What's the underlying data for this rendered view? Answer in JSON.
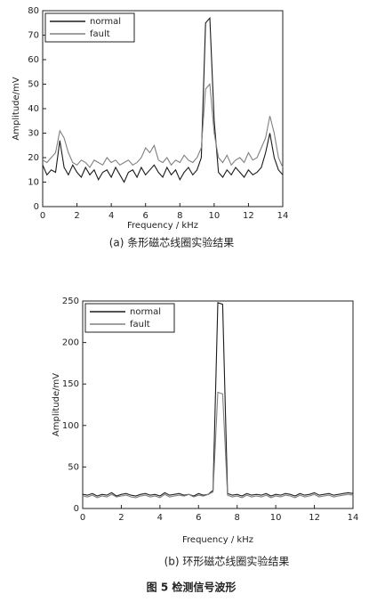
{
  "chart_data": [
    {
      "type": "line",
      "x_label": "Frequency / kHz",
      "y_label": "Amplitude/mV",
      "caption": "(a) 条形磁芯线圈实验结果",
      "x": [
        0,
        0.25,
        0.5,
        0.75,
        1,
        1.25,
        1.5,
        1.75,
        2,
        2.25,
        2.5,
        2.75,
        3,
        3.25,
        3.5,
        3.75,
        4,
        4.25,
        4.5,
        4.75,
        5,
        5.25,
        5.5,
        5.75,
        6,
        6.25,
        6.5,
        6.75,
        7,
        7.25,
        7.5,
        7.75,
        8,
        8.25,
        8.5,
        8.75,
        9,
        9.25,
        9.5,
        9.75,
        10,
        10.25,
        10.5,
        10.75,
        11,
        11.25,
        11.5,
        11.75,
        12,
        12.25,
        12.5,
        12.75,
        13,
        13.25,
        13.5,
        13.75,
        14
      ],
      "series": [
        {
          "name": "normal",
          "color": "#1a1a1a",
          "values": [
            17,
            13,
            15,
            14,
            27,
            16,
            13,
            17,
            14,
            12,
            16,
            13,
            15,
            11,
            14,
            15,
            12,
            16,
            13,
            10,
            14,
            15,
            12,
            16,
            13,
            15,
            17,
            14,
            12,
            16,
            13,
            15,
            11,
            14,
            16,
            13,
            15,
            20,
            75,
            77,
            35,
            14,
            12,
            15,
            13,
            16,
            14,
            12,
            15,
            13,
            14,
            16,
            22,
            30,
            20,
            15,
            13
          ]
        },
        {
          "name": "fault",
          "color": "#808080",
          "values": [
            19,
            18,
            20,
            22,
            31,
            28,
            22,
            18,
            17,
            19,
            18,
            16,
            19,
            18,
            17,
            20,
            18,
            19,
            17,
            18,
            19,
            17,
            18,
            20,
            24,
            22,
            25,
            19,
            18,
            20,
            17,
            19,
            18,
            21,
            19,
            18,
            20,
            24,
            48,
            50,
            30,
            20,
            18,
            21,
            17,
            19,
            20,
            18,
            22,
            19,
            20,
            24,
            28,
            37,
            30,
            20,
            16
          ]
        }
      ],
      "xlim": [
        0,
        14
      ],
      "xticks": [
        0,
        2,
        4,
        6,
        8,
        10,
        12,
        14
      ],
      "ylim": [
        0,
        80
      ],
      "yticks": [
        0,
        10,
        20,
        30,
        40,
        50,
        60,
        70,
        80
      ],
      "legend": "upper-left"
    },
    {
      "type": "line",
      "x_label": "Frequency / kHz",
      "y_label": "Amplitude/mV",
      "caption": "(b) 环形磁芯线圈实验结果",
      "x": [
        0,
        0.25,
        0.5,
        0.75,
        1,
        1.25,
        1.5,
        1.75,
        2,
        2.25,
        2.5,
        2.75,
        3,
        3.25,
        3.5,
        3.75,
        4,
        4.25,
        4.5,
        4.75,
        5,
        5.25,
        5.5,
        5.75,
        6,
        6.25,
        6.5,
        6.75,
        7,
        7.25,
        7.5,
        7.75,
        8,
        8.25,
        8.5,
        8.75,
        9,
        9.25,
        9.5,
        9.75,
        10,
        10.25,
        10.5,
        10.75,
        11,
        11.25,
        11.5,
        11.75,
        12,
        12.25,
        12.5,
        12.75,
        13,
        13.25,
        13.5,
        13.75,
        14
      ],
      "series": [
        {
          "name": "normal",
          "color": "#1a1a1a",
          "values": [
            17,
            16,
            18,
            15,
            17,
            16,
            19,
            15,
            17,
            18,
            16,
            15,
            17,
            18,
            16,
            17,
            15,
            19,
            16,
            17,
            18,
            16,
            17,
            15,
            18,
            16,
            17,
            22,
            248,
            246,
            18,
            16,
            17,
            15,
            18,
            16,
            17,
            16,
            18,
            15,
            17,
            16,
            18,
            17,
            15,
            18,
            16,
            17,
            19,
            16,
            17,
            18,
            16,
            17,
            18,
            19,
            18
          ]
        },
        {
          "name": "fault",
          "color": "#808080",
          "values": [
            15,
            14,
            16,
            13,
            15,
            14,
            17,
            14,
            15,
            16,
            14,
            13,
            15,
            16,
            14,
            15,
            13,
            17,
            14,
            15,
            16,
            15,
            17,
            14,
            16,
            15,
            17,
            20,
            140,
            138,
            16,
            14,
            15,
            13,
            16,
            14,
            15,
            14,
            16,
            13,
            15,
            14,
            16,
            15,
            13,
            16,
            14,
            15,
            17,
            14,
            15,
            16,
            14,
            15,
            16,
            17,
            16
          ]
        }
      ],
      "xlim": [
        0,
        14
      ],
      "xticks": [
        0,
        2,
        4,
        6,
        8,
        10,
        12,
        14
      ],
      "ylim": [
        0,
        250
      ],
      "yticks": [
        0,
        50,
        100,
        150,
        200,
        250
      ],
      "legend": "upper-left"
    }
  ],
  "figure_caption": "图 5 检测信号波形"
}
